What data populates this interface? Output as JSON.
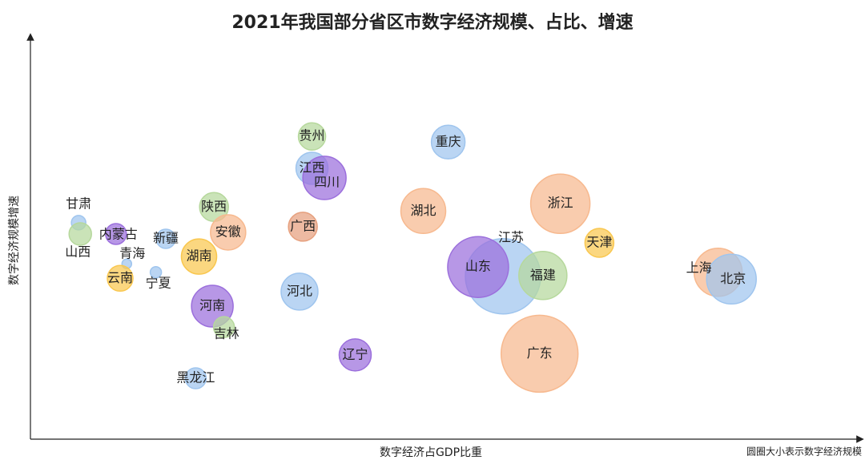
{
  "chart_data": {
    "type": "bubble",
    "title": "2021年我国部分省区市数字经济规模、占比、增速",
    "x_label": "数字经济占GDP比重",
    "y_label": "数字经济规模增速",
    "note": "圆圈大小表示数字经济规模",
    "xlim": [
      0,
      100
    ],
    "ylim": [
      0,
      100
    ],
    "categories": [
      "甘肃",
      "山西",
      "内蒙古",
      "青海",
      "云南",
      "宁夏",
      "新疆",
      "陕西",
      "安徽",
      "湖南",
      "河南",
      "吉林",
      "黑龙江",
      "贵州",
      "江西",
      "四川",
      "广西",
      "河北",
      "辽宁",
      "重庆",
      "湖北",
      "浙江",
      "天津",
      "江苏",
      "山东",
      "福建",
      "广东",
      "上海",
      "北京"
    ],
    "x": [
      5.8,
      6.0,
      10.3,
      11.6,
      10.8,
      15.1,
      16.3,
      22.1,
      23.8,
      20.3,
      21.9,
      23.3,
      19.9,
      33.9,
      33.9,
      35.4,
      32.8,
      32.4,
      39.1,
      50.3,
      47.3,
      63.8,
      68.5,
      56.9,
      53.9,
      61.7,
      61.3,
      82.8,
      84.4
    ],
    "values": [
      53.7,
      50.9,
      50.9,
      43.5,
      39.9,
      41.4,
      49.7,
      57.6,
      51.3,
      45.3,
      33.0,
      27.8,
      15.1,
      75.1,
      67.2,
      64.8,
      52.7,
      36.6,
      20.9,
      73.7,
      56.6,
      58.4,
      48.7,
      40.4,
      42.7,
      40.6,
      21.2,
      41.4,
      39.7
    ],
    "sizes": [
      9,
      14,
      13,
      6,
      16,
      7,
      12,
      18,
      22,
      22,
      26,
      13,
      13,
      17,
      20,
      27,
      18,
      23,
      20,
      21,
      28,
      37,
      18,
      47,
      38,
      30,
      48,
      30,
      31
    ],
    "colors": [
      "#9fc5ee",
      "#b6d89c",
      "#9b6fdc",
      "#9fc5ee",
      "#f9c74f",
      "#9fc5ee",
      "#9fc5ee",
      "#b6d89c",
      "#f7b98f",
      "#f9c74f",
      "#9b6fdc",
      "#b6d89c",
      "#9fc5ee",
      "#b6d89c",
      "#9fc5ee",
      "#9b6fdc",
      "#e6a07e",
      "#9fc5ee",
      "#9b6fdc",
      "#9fc5ee",
      "#f7b98f",
      "#f7b98f",
      "#f9c74f",
      "#9fc5ee",
      "#9b6fdc",
      "#b6d89c",
      "#f7b98f",
      "#f7b98f",
      "#9fc5ee"
    ]
  }
}
